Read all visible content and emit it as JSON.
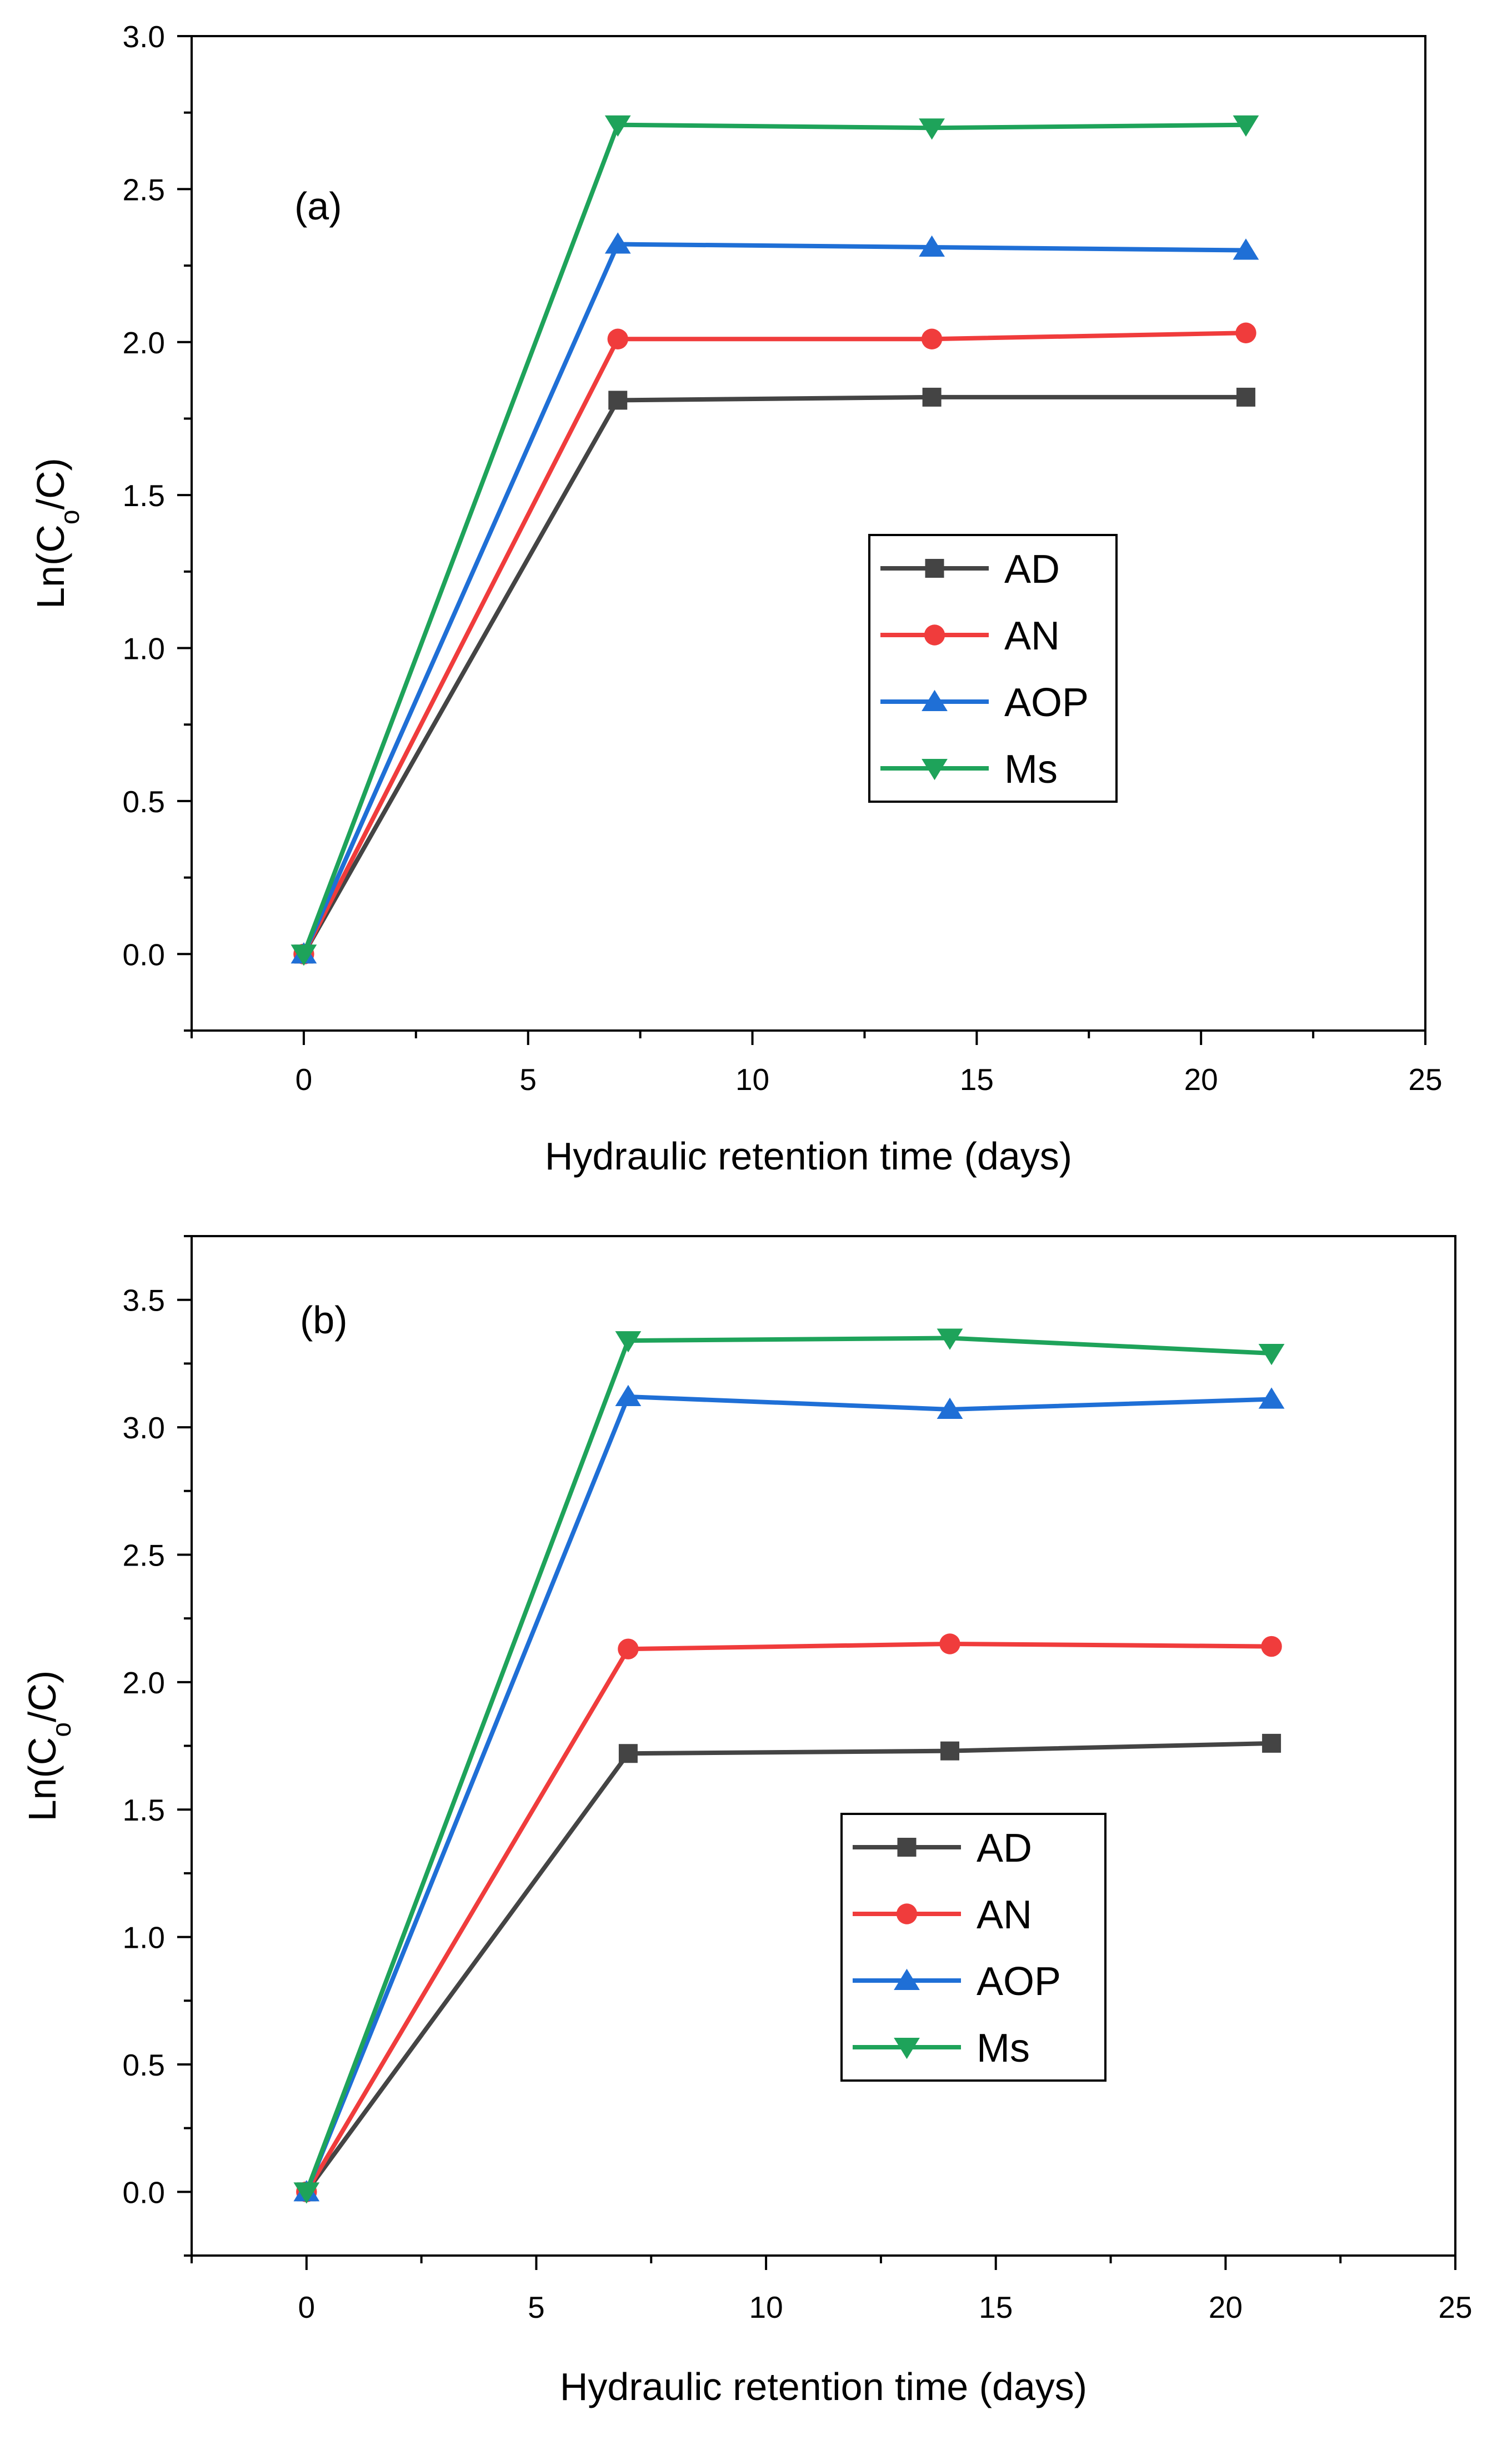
{
  "chart_data": [
    {
      "type": "line",
      "panel_label": "(a)",
      "xlabel": "Hydraulic retention time (days)",
      "ylabel_parts": [
        "Ln(C",
        "o",
        "/C)"
      ],
      "xlim": [
        -2.5,
        25
      ],
      "ylim": [
        -0.25,
        3.0
      ],
      "xticks": [
        0,
        5,
        10,
        15,
        20,
        25
      ],
      "yticks": [
        0.0,
        0.5,
        1.0,
        1.5,
        2.0,
        2.5,
        3.0
      ],
      "xtick_labels": [
        "0",
        "5",
        "10",
        "15",
        "20",
        "25"
      ],
      "ytick_labels": [
        "0.0",
        "0.5",
        "1.0",
        "1.5",
        "2.0",
        "2.5",
        "3.0"
      ],
      "x": [
        0,
        7,
        14,
        21
      ],
      "legend_position": "center-right",
      "series": [
        {
          "name": "AD",
          "color": "#444444",
          "marker": "square",
          "values": [
            0,
            1.81,
            1.82,
            1.82
          ]
        },
        {
          "name": "AN",
          "color": "#f03c3c",
          "marker": "circle",
          "values": [
            0,
            2.01,
            2.01,
            2.03
          ]
        },
        {
          "name": "AOP",
          "color": "#1f6fd6",
          "marker": "triangle-up",
          "values": [
            0,
            2.32,
            2.31,
            2.3
          ]
        },
        {
          "name": "Ms",
          "color": "#1ea35a",
          "marker": "triangle-down",
          "values": [
            0,
            2.71,
            2.7,
            2.71
          ]
        }
      ]
    },
    {
      "type": "line",
      "panel_label": "(b)",
      "xlabel": "Hydraulic retention time (days)",
      "ylabel_parts": [
        "Ln(C",
        "o",
        "/C)"
      ],
      "xlim": [
        -2.5,
        25
      ],
      "ylim": [
        -0.25,
        3.75
      ],
      "xticks": [
        0,
        5,
        10,
        15,
        20,
        25
      ],
      "yticks": [
        0.0,
        0.5,
        1.0,
        1.5,
        2.0,
        2.5,
        3.0,
        3.5
      ],
      "xtick_labels": [
        "0",
        "5",
        "10",
        "15",
        "20",
        "25"
      ],
      "ytick_labels": [
        "0.0",
        "0.5",
        "1.0",
        "1.5",
        "2.0",
        "2.5",
        "3.0",
        "3.5"
      ],
      "x": [
        0,
        7,
        14,
        21
      ],
      "legend_position": "lower-right",
      "series": [
        {
          "name": "AD",
          "color": "#444444",
          "marker": "square",
          "values": [
            0,
            1.72,
            1.73,
            1.76
          ]
        },
        {
          "name": "AN",
          "color": "#f03c3c",
          "marker": "circle",
          "values": [
            0,
            2.13,
            2.15,
            2.14
          ]
        },
        {
          "name": "AOP",
          "color": "#1f6fd6",
          "marker": "triangle-up",
          "values": [
            0,
            3.12,
            3.07,
            3.11
          ]
        },
        {
          "name": "Ms",
          "color": "#1ea35a",
          "marker": "triangle-down",
          "values": [
            0,
            3.34,
            3.35,
            3.29
          ]
        }
      ]
    }
  ]
}
